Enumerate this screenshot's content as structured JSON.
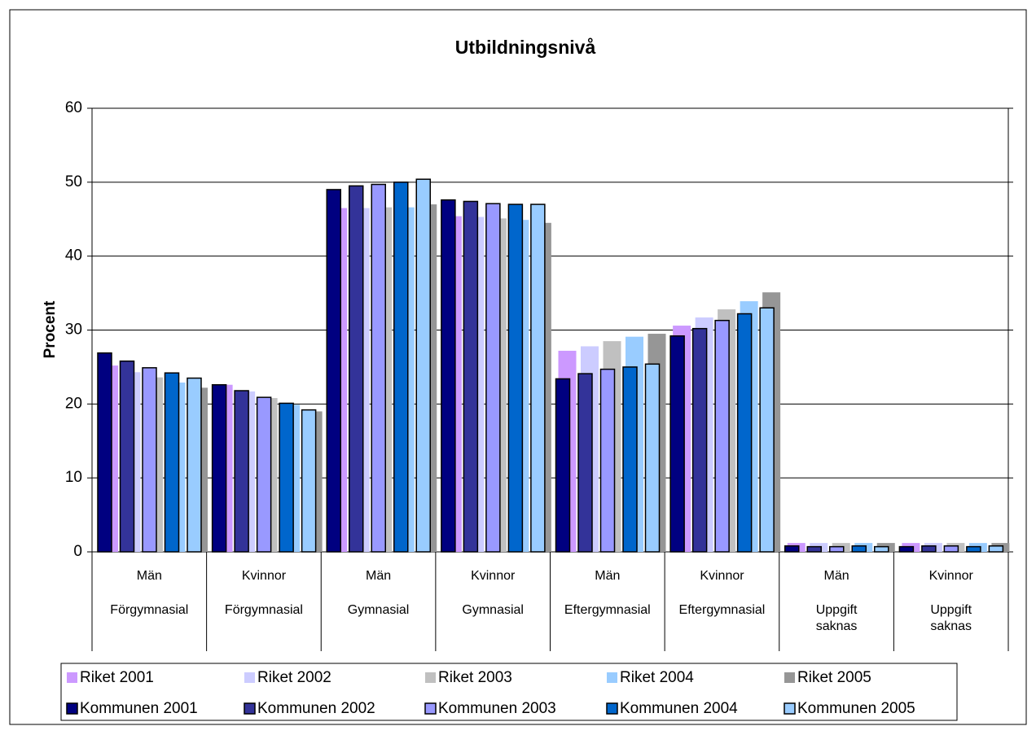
{
  "chart_data": {
    "type": "bar",
    "title": "Utbildningsnivå",
    "y_label": "Procent",
    "categories": [
      [
        "Män",
        "Förgymnasial"
      ],
      [
        "Kvinnor",
        "Förgymnasial"
      ],
      [
        "Män",
        "Gymnasial"
      ],
      [
        "Kvinnor",
        "Gymnasial"
      ],
      [
        "Män",
        "Eftergymnasial"
      ],
      [
        "Kvinnor",
        "Eftergymnasial"
      ],
      [
        "Män",
        "Uppgift saknas"
      ],
      [
        "Kvinnor",
        "Uppgift saknas"
      ]
    ],
    "series": [
      {
        "name": "Riket 2001",
        "color": "#cc99ff",
        "values": [
          25.2,
          22.6,
          46.5,
          45.4,
          27.2,
          30.6,
          1.2,
          1.2
        ]
      },
      {
        "name": "Riket 2002",
        "color": "#ccccff",
        "values": [
          24.3,
          21.7,
          46.5,
          45.3,
          27.8,
          31.7,
          1.2,
          1.2
        ]
      },
      {
        "name": "Riket 2003",
        "color": "#c0c0c0",
        "values": [
          23.6,
          20.8,
          46.6,
          45.1,
          28.5,
          32.8,
          1.2,
          1.2
        ]
      },
      {
        "name": "Riket 2004",
        "color": "#99ccff",
        "values": [
          22.9,
          19.9,
          46.6,
          44.9,
          29.1,
          33.9,
          1.2,
          1.2
        ]
      },
      {
        "name": "Riket 2005",
        "color": "#969696",
        "values": [
          22.2,
          19.0,
          47.0,
          44.5,
          29.5,
          35.1,
          1.2,
          1.2
        ]
      },
      {
        "name": "Kommunen 2001",
        "color": "#000080",
        "values": [
          26.9,
          22.6,
          49.0,
          47.6,
          23.4,
          29.2,
          0.8,
          0.7
        ]
      },
      {
        "name": "Kommunen 2002",
        "color": "#333399",
        "values": [
          25.8,
          21.8,
          49.5,
          47.4,
          24.1,
          30.2,
          0.7,
          0.8
        ]
      },
      {
        "name": "Kommunen 2003",
        "color": "#9999ff",
        "values": [
          24.9,
          20.9,
          49.7,
          47.1,
          24.7,
          31.3,
          0.7,
          0.8
        ]
      },
      {
        "name": "Kommunen 2004",
        "color": "#0066cc",
        "values": [
          24.2,
          20.1,
          50.0,
          47.0,
          25.0,
          32.2,
          0.8,
          0.7
        ]
      },
      {
        "name": "Kommunen 2005",
        "color": "#99ccff",
        "values": [
          23.5,
          19.2,
          50.4,
          47.0,
          25.4,
          33.0,
          0.7,
          0.8
        ]
      }
    ],
    "ylim": [
      0,
      60
    ],
    "yticks": [
      0,
      10,
      20,
      30,
      40,
      50,
      60
    ],
    "grid": true
  }
}
